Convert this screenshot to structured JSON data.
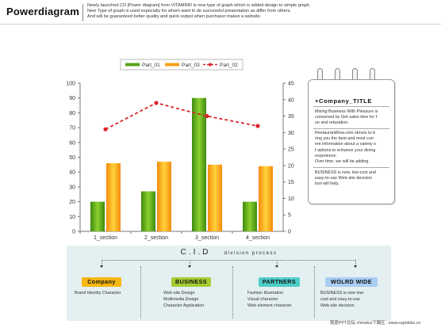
{
  "header": {
    "brand": "Powerdiagram",
    "lines": [
      "Newly launched CD [Power diagram] from VITAMIND is new type of graph which is added design to simple graph.",
      "New Type of graph is used especially for whom want to do successful presentation as differ from others.",
      "And will be guaranteed better quality and quick output when purchaser makes a website."
    ]
  },
  "chart_data": {
    "type": "bar",
    "categories": [
      "1_section",
      "2_section",
      "3_section",
      "4_section"
    ],
    "series": [
      {
        "name": "Part_01",
        "type": "bar",
        "axis": "left",
        "color": "#5aa318",
        "values": [
          20,
          27,
          90,
          20
        ]
      },
      {
        "name": "Part_03",
        "type": "bar",
        "axis": "left",
        "color": "#f7a11a",
        "values": [
          46,
          47,
          45,
          44
        ]
      },
      {
        "name": "Part_02",
        "type": "line",
        "axis": "right",
        "color": "#d9262a",
        "values": [
          31,
          39,
          35,
          32
        ]
      }
    ],
    "left_axis": {
      "min": 0,
      "max": 100,
      "ticks": [
        0,
        10,
        20,
        30,
        40,
        50,
        60,
        70,
        80,
        90,
        100
      ]
    },
    "right_axis": {
      "min": 0,
      "max": 45,
      "ticks": [
        0,
        5,
        10,
        15,
        20,
        25,
        30,
        35,
        40,
        45
      ]
    },
    "legend_position": "top",
    "grid": false
  },
  "notepad": {
    "title": "+Company_TITLE",
    "paragraphs": [
      [
        "Mixing Business With Pleasure is",
        "conceived by Get sales time for f",
        "un and relaxation ."
      ],
      [
        "RestaurantRow.com strives to b",
        "ring you the best and most curr",
        "ent information about a variety o",
        "f options to enhance your dining",
        "experience.",
        "Over time, we will be adding."
      ],
      [
        "BUSINESS is new, low-cost and",
        "easy-to-use Web-site decision",
        "tool will help."
      ]
    ]
  },
  "cid": {
    "title_main": "C.I.D",
    "title_sub": "division process",
    "columns": [
      {
        "label": "Company",
        "color": "#f9b711",
        "items": [
          "Brand Identity Character"
        ]
      },
      {
        "label": "BUSINESS",
        "color": "#a5cc32",
        "items": [
          "Web-site Design",
          "Multimedia Design",
          "Character Application"
        ]
      },
      {
        "label": "PARTNERS",
        "color": "#4ecdc8",
        "items": [
          "Fashion Illustration",
          "Visual character",
          "Web element character"
        ]
      },
      {
        "label": "WOLRD WIDE",
        "color": "#a9cdf3",
        "items": [
          "BUSINESS is new low-",
          "cost and easy-to-use",
          "Web-site decision."
        ]
      }
    ]
  },
  "footer": "我爱PPT论坛 chinakui下载区 : www.rapidsbs.cn"
}
